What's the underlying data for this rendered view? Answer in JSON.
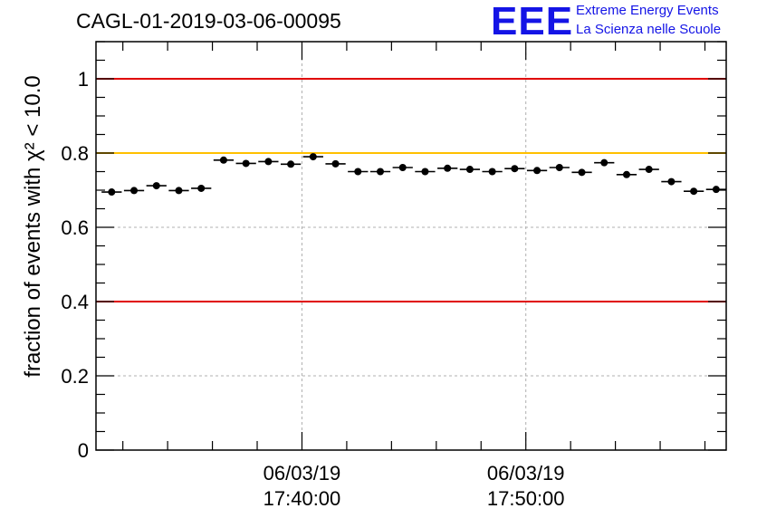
{
  "chart_data": {
    "type": "scatter",
    "title": "CAGL-01-2019-03-06-00095",
    "ylabel": "fraction of events with χ² < 10.0",
    "ylim": [
      0,
      1.1
    ],
    "y_ticks": [
      "0",
      "0.2",
      "0.4",
      "0.6",
      "0.8",
      "1"
    ],
    "x_ticks": [
      {
        "date": "06/03/19",
        "time": "17:40:00"
      },
      {
        "date": "06/03/19",
        "time": "17:50:00"
      }
    ],
    "grid": true,
    "reference_lines": [
      {
        "y": 1.0,
        "color": "#e00000"
      },
      {
        "y": 0.8,
        "color": "#ffc000"
      },
      {
        "y": 0.4,
        "color": "#e00000"
      }
    ],
    "series": [
      {
        "x_start": [
          "17:31:00",
          "17:32:00",
          "17:33:00",
          "17:34:00",
          "17:35:00",
          "17:36:00",
          "17:37:00",
          "17:38:00",
          "17:39:00",
          "17:40:00",
          "17:41:00",
          "17:42:00",
          "17:43:00",
          "17:44:00",
          "17:45:00",
          "17:46:00",
          "17:47:00",
          "17:48:00",
          "17:49:00",
          "17:50:00",
          "17:51:00",
          "17:52:00",
          "17:53:00",
          "17:54:00",
          "17:55:00",
          "17:56:00",
          "17:57:00",
          "17:58:00"
        ],
        "values": [
          0.695,
          0.699,
          0.712,
          0.699,
          0.705,
          0.781,
          0.772,
          0.777,
          0.77,
          0.79,
          0.771,
          0.75,
          0.75,
          0.761,
          0.75,
          0.759,
          0.756,
          0.75,
          0.758,
          0.753,
          0.761,
          0.748,
          0.774,
          0.742,
          0.756,
          0.723,
          0.697,
          0.702
        ]
      }
    ]
  },
  "logo": {
    "mark": "EEE",
    "line1": "Extreme Energy Events",
    "line2": "La Scienza nelle Scuole"
  }
}
